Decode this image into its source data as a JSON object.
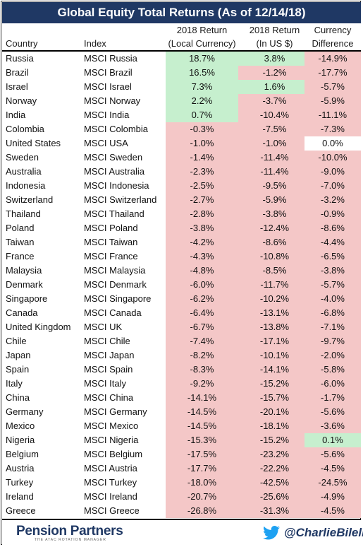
{
  "title": "Global Equity Total Returns (As of  12/14/18)",
  "headers": {
    "country": "Country",
    "index": "Index",
    "local_line1": "2018 Return",
    "local_line2": "(Local Currency)",
    "usd_line1": "2018 Return",
    "usd_line2": "(In US $)",
    "diff_line1": "Currency",
    "diff_line2": "Difference"
  },
  "colors": {
    "title_bg": "#1f3864",
    "positive": "#c6efce",
    "negative": "#f4c7c7",
    "neutral": "#ffffff"
  },
  "rows": [
    {
      "country": "Russia",
      "index": "MSCI Russia",
      "local": "18.7%",
      "usd": "3.8%",
      "diff": "-14.9%"
    },
    {
      "country": "Brazil",
      "index": "MSCI Brazil",
      "local": "16.5%",
      "usd": "-1.2%",
      "diff": "-17.7%"
    },
    {
      "country": "Israel",
      "index": "MSCI Israel",
      "local": "7.3%",
      "usd": "1.6%",
      "diff": "-5.7%"
    },
    {
      "country": "Norway",
      "index": "MSCI Norway",
      "local": "2.2%",
      "usd": "-3.7%",
      "diff": "-5.9%"
    },
    {
      "country": "India",
      "index": "MSCI India",
      "local": "0.7%",
      "usd": "-10.4%",
      "diff": "-11.1%"
    },
    {
      "country": "Colombia",
      "index": "MSCI Colombia",
      "local": "-0.3%",
      "usd": "-7.5%",
      "diff": "-7.3%"
    },
    {
      "country": "United States",
      "index": "MSCI USA",
      "local": "-1.0%",
      "usd": "-1.0%",
      "diff": "0.0%"
    },
    {
      "country": "Sweden",
      "index": "MSCI Sweden",
      "local": "-1.4%",
      "usd": "-11.4%",
      "diff": "-10.0%"
    },
    {
      "country": "Australia",
      "index": "MSCI Australia",
      "local": "-2.3%",
      "usd": "-11.4%",
      "diff": "-9.0%"
    },
    {
      "country": "Indonesia",
      "index": "MSCI Indonesia",
      "local": "-2.5%",
      "usd": "-9.5%",
      "diff": "-7.0%"
    },
    {
      "country": "Switzerland",
      "index": "MSCI Switzerland",
      "local": "-2.7%",
      "usd": "-5.9%",
      "diff": "-3.2%"
    },
    {
      "country": "Thailand",
      "index": "MSCI Thailand",
      "local": "-2.8%",
      "usd": "-3.8%",
      "diff": "-0.9%"
    },
    {
      "country": "Poland",
      "index": "MSCI Poland",
      "local": "-3.8%",
      "usd": "-12.4%",
      "diff": "-8.6%"
    },
    {
      "country": "Taiwan",
      "index": "MSCI Taiwan",
      "local": "-4.2%",
      "usd": "-8.6%",
      "diff": "-4.4%"
    },
    {
      "country": "France",
      "index": "MSCI France",
      "local": "-4.3%",
      "usd": "-10.8%",
      "diff": "-6.5%"
    },
    {
      "country": "Malaysia",
      "index": "MSCI Malaysia",
      "local": "-4.8%",
      "usd": "-8.5%",
      "diff": "-3.8%"
    },
    {
      "country": "Denmark",
      "index": "MSCI Denmark",
      "local": "-6.0%",
      "usd": "-11.7%",
      "diff": "-5.7%"
    },
    {
      "country": "Singapore",
      "index": "MSCI Singapore",
      "local": "-6.2%",
      "usd": "-10.2%",
      "diff": "-4.0%"
    },
    {
      "country": "Canada",
      "index": "MSCI Canada",
      "local": "-6.4%",
      "usd": "-13.1%",
      "diff": "-6.8%"
    },
    {
      "country": "United Kingdom",
      "index": "MSCI UK",
      "local": "-6.7%",
      "usd": "-13.8%",
      "diff": "-7.1%"
    },
    {
      "country": "Chile",
      "index": "MSCI Chile",
      "local": "-7.4%",
      "usd": "-17.1%",
      "diff": "-9.7%"
    },
    {
      "country": "Japan",
      "index": "MSCI Japan",
      "local": "-8.2%",
      "usd": "-10.1%",
      "diff": "-2.0%"
    },
    {
      "country": "Spain",
      "index": "MSCI Spain",
      "local": "-8.3%",
      "usd": "-14.1%",
      "diff": "-5.8%"
    },
    {
      "country": "Italy",
      "index": "MSCI Italy",
      "local": "-9.2%",
      "usd": "-15.2%",
      "diff": "-6.0%"
    },
    {
      "country": "China",
      "index": "MSCI China",
      "local": "-14.1%",
      "usd": "-15.7%",
      "diff": "-1.7%"
    },
    {
      "country": "Germany",
      "index": "MSCI Germany",
      "local": "-14.5%",
      "usd": "-20.1%",
      "diff": "-5.6%"
    },
    {
      "country": "Mexico",
      "index": "MSCI Mexico",
      "local": "-14.5%",
      "usd": "-18.1%",
      "diff": "-3.6%"
    },
    {
      "country": "Nigeria",
      "index": "MSCI Nigeria",
      "local": "-15.3%",
      "usd": "-15.2%",
      "diff": "0.1%"
    },
    {
      "country": "Belgium",
      "index": "MSCI Belgium",
      "local": "-17.5%",
      "usd": "-23.2%",
      "diff": "-5.6%"
    },
    {
      "country": "Austria",
      "index": "MSCI Austria",
      "local": "-17.7%",
      "usd": "-22.2%",
      "diff": "-4.5%"
    },
    {
      "country": "Turkey",
      "index": "MSCI Turkey",
      "local": "-18.0%",
      "usd": "-42.5%",
      "diff": "-24.5%"
    },
    {
      "country": "Ireland",
      "index": "MSCI Ireland",
      "local": "-20.7%",
      "usd": "-25.6%",
      "diff": "-4.9%"
    },
    {
      "country": "Greece",
      "index": "MSCI Greece",
      "local": "-26.8%",
      "usd": "-31.3%",
      "diff": "-4.5%"
    }
  ],
  "footer": {
    "logo_text": "Pension Partners",
    "logo_tagline": "THE ATAC ROTATION MANAGER",
    "icon": "twitter-bird-icon",
    "handle": "@CharlieBilello"
  }
}
